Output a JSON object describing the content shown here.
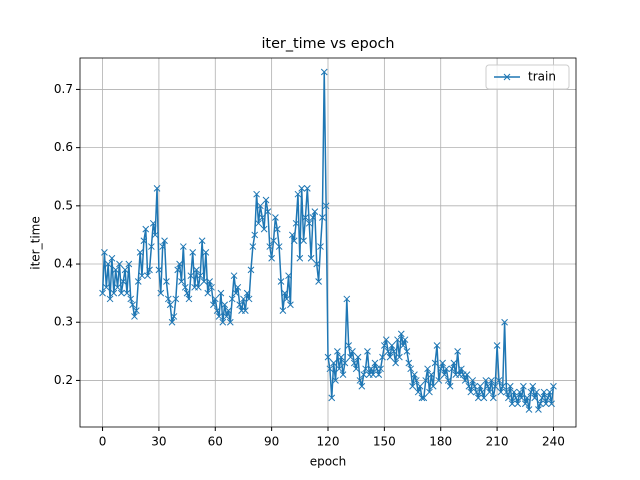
{
  "chart_data": {
    "type": "line",
    "title": "iter_time vs epoch",
    "x_label": "epoch",
    "y_label": "iter_time",
    "xlim": [
      -12,
      252
    ],
    "ylim": [
      0.12,
      0.754
    ],
    "xticks": [
      0,
      30,
      60,
      90,
      120,
      150,
      180,
      210,
      240
    ],
    "yticks": [
      0.2,
      0.3,
      0.4,
      0.5,
      0.6,
      0.7
    ],
    "grid": true,
    "legend": "upper right",
    "x": [
      0,
      1,
      2,
      3,
      4,
      5,
      6,
      7,
      8,
      9,
      10,
      11,
      12,
      13,
      14,
      15,
      16,
      17,
      18,
      19,
      20,
      21,
      22,
      23,
      24,
      25,
      26,
      27,
      28,
      29,
      30,
      31,
      32,
      33,
      34,
      35,
      36,
      37,
      38,
      39,
      40,
      41,
      42,
      43,
      44,
      45,
      46,
      47,
      48,
      49,
      50,
      51,
      52,
      53,
      54,
      55,
      56,
      57,
      58,
      59,
      60,
      61,
      62,
      63,
      64,
      65,
      66,
      67,
      68,
      69,
      70,
      71,
      72,
      73,
      74,
      75,
      76,
      77,
      78,
      79,
      80,
      81,
      82,
      83,
      84,
      85,
      86,
      87,
      88,
      89,
      90,
      91,
      92,
      93,
      94,
      95,
      96,
      97,
      98,
      99,
      100,
      101,
      102,
      103,
      104,
      105,
      106,
      107,
      108,
      109,
      110,
      111,
      112,
      113,
      114,
      115,
      116,
      117,
      118,
      119,
      120,
      121,
      122,
      123,
      124,
      125,
      126,
      127,
      128,
      129,
      130,
      131,
      132,
      133,
      134,
      135,
      136,
      137,
      138,
      139,
      140,
      141,
      142,
      143,
      144,
      145,
      146,
      147,
      148,
      149,
      150,
      151,
      152,
      153,
      154,
      155,
      156,
      157,
      158,
      159,
      160,
      161,
      162,
      163,
      164,
      165,
      166,
      167,
      168,
      169,
      170,
      171,
      172,
      173,
      174,
      175,
      176,
      177,
      178,
      179,
      180,
      181,
      182,
      183,
      184,
      185,
      186,
      187,
      188,
      189,
      190,
      191,
      192,
      193,
      194,
      195,
      196,
      197,
      198,
      199,
      200,
      201,
      202,
      203,
      204,
      205,
      206,
      207,
      208,
      209,
      210,
      211,
      212,
      213,
      214,
      215,
      216,
      217,
      218,
      219,
      220,
      221,
      222,
      223,
      224,
      225,
      226,
      227,
      228,
      229,
      230,
      231,
      232,
      233,
      234,
      235,
      236,
      237,
      238,
      239,
      240
    ],
    "series": [
      {
        "name": "train",
        "color": "#1f77b4",
        "values": [
          0.35,
          0.42,
          0.36,
          0.4,
          0.34,
          0.41,
          0.35,
          0.39,
          0.36,
          0.4,
          0.35,
          0.37,
          0.39,
          0.35,
          0.4,
          0.34,
          0.33,
          0.31,
          0.32,
          0.37,
          0.42,
          0.38,
          0.44,
          0.46,
          0.38,
          0.39,
          0.43,
          0.47,
          0.45,
          0.53,
          0.39,
          0.35,
          0.43,
          0.44,
          0.37,
          0.34,
          0.33,
          0.3,
          0.31,
          0.34,
          0.39,
          0.4,
          0.37,
          0.43,
          0.36,
          0.35,
          0.34,
          0.38,
          0.42,
          0.36,
          0.39,
          0.36,
          0.38,
          0.44,
          0.37,
          0.42,
          0.35,
          0.37,
          0.36,
          0.33,
          0.34,
          0.32,
          0.31,
          0.35,
          0.3,
          0.33,
          0.31,
          0.32,
          0.3,
          0.34,
          0.38,
          0.35,
          0.36,
          0.33,
          0.32,
          0.34,
          0.32,
          0.35,
          0.34,
          0.39,
          0.43,
          0.45,
          0.52,
          0.47,
          0.5,
          0.48,
          0.46,
          0.51,
          0.49,
          0.43,
          0.41,
          0.44,
          0.48,
          0.46,
          0.43,
          0.37,
          0.32,
          0.35,
          0.34,
          0.38,
          0.33,
          0.45,
          0.44,
          0.47,
          0.52,
          0.41,
          0.53,
          0.44,
          0.48,
          0.53,
          0.47,
          0.41,
          0.48,
          0.49,
          0.4,
          0.37,
          0.43,
          0.48,
          0.73,
          0.5,
          0.24,
          0.22,
          0.17,
          0.23,
          0.2,
          0.25,
          0.22,
          0.24,
          0.21,
          0.23,
          0.34,
          0.26,
          0.24,
          0.25,
          0.23,
          0.22,
          0.24,
          0.2,
          0.19,
          0.21,
          0.22,
          0.25,
          0.21,
          0.22,
          0.21,
          0.23,
          0.22,
          0.21,
          0.22,
          0.24,
          0.26,
          0.27,
          0.25,
          0.24,
          0.26,
          0.25,
          0.23,
          0.27,
          0.24,
          0.28,
          0.26,
          0.27,
          0.25,
          0.23,
          0.22,
          0.19,
          0.21,
          0.2,
          0.18,
          0.19,
          0.17,
          0.17,
          0.2,
          0.22,
          0.18,
          0.21,
          0.19,
          0.23,
          0.26,
          0.2,
          0.22,
          0.23,
          0.21,
          0.22,
          0.2,
          0.19,
          0.22,
          0.23,
          0.21,
          0.25,
          0.21,
          0.22,
          0.21,
          0.2,
          0.21,
          0.19,
          0.18,
          0.2,
          0.19,
          0.18,
          0.17,
          0.19,
          0.18,
          0.17,
          0.2,
          0.19,
          0.18,
          0.2,
          0.17,
          0.19,
          0.26,
          0.2,
          0.18,
          0.19,
          0.3,
          0.18,
          0.17,
          0.19,
          0.16,
          0.18,
          0.17,
          0.16,
          0.18,
          0.17,
          0.19,
          0.16,
          0.17,
          0.15,
          0.18,
          0.19,
          0.17,
          0.18,
          0.15,
          0.16,
          0.17,
          0.18,
          0.16,
          0.17,
          0.18,
          0.16,
          0.19
        ]
      }
    ]
  }
}
